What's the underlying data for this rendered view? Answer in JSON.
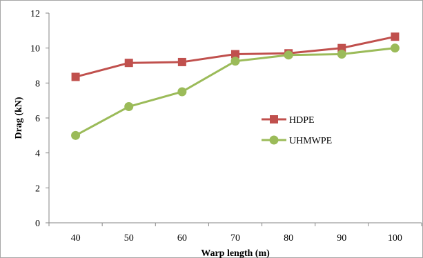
{
  "chart_data": {
    "type": "line",
    "title": "",
    "xlabel": "Warp length (m)",
    "ylabel": "Drag (kN)",
    "categories": [
      "40",
      "50",
      "60",
      "70",
      "80",
      "90",
      "100"
    ],
    "ylim": [
      0,
      12
    ],
    "yticks": [
      "0",
      "2",
      "4",
      "6",
      "8",
      "10",
      "12"
    ],
    "grid": false,
    "legend_position": "right-middle",
    "series": [
      {
        "name": "HDPE",
        "values": [
          8.35,
          9.15,
          9.2,
          9.65,
          9.7,
          10.0,
          10.65
        ],
        "color": "#c0504d",
        "marker": "square"
      },
      {
        "name": "UHMWPE",
        "values": [
          5.0,
          6.65,
          7.5,
          9.25,
          9.6,
          9.65,
          10.0
        ],
        "color": "#9bbb59",
        "marker": "circle"
      }
    ]
  }
}
